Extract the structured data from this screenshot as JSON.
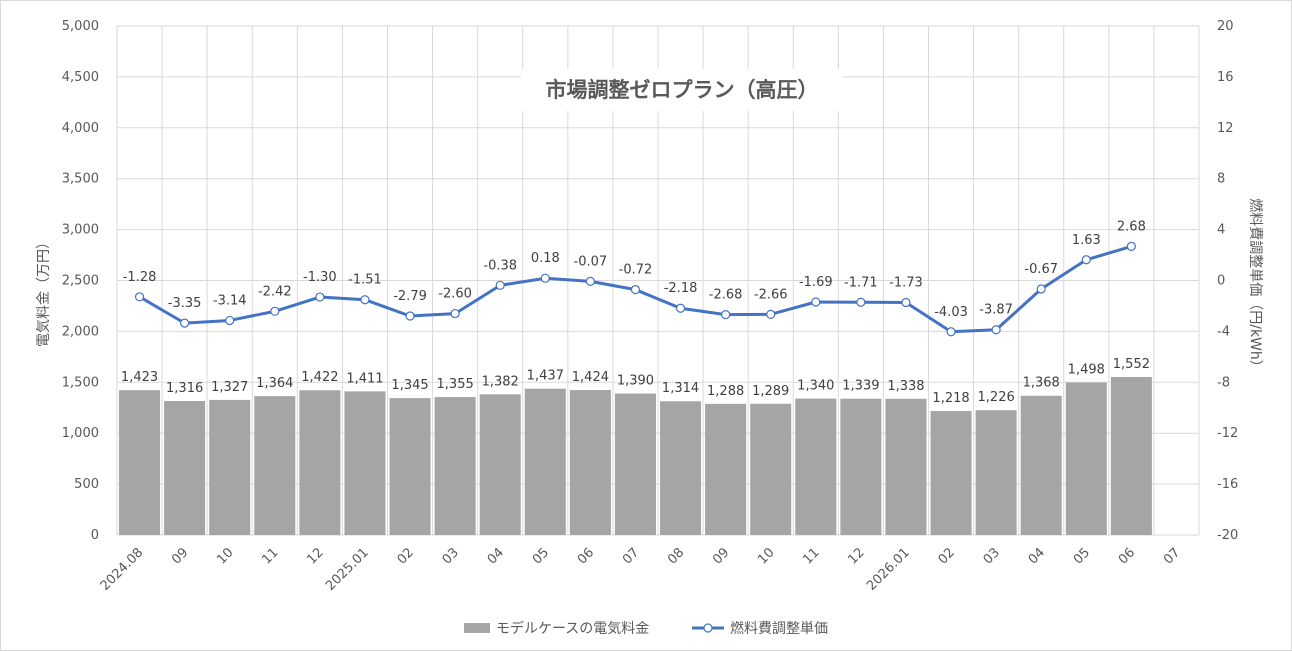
{
  "chart_data": {
    "type": "bar+line",
    "title": "市場調整ゼロプラン（高圧）",
    "categories": [
      "2024.08",
      "09",
      "10",
      "11",
      "12",
      "2025.01",
      "02",
      "03",
      "04",
      "05",
      "06",
      "07",
      "08",
      "09",
      "10",
      "11",
      "12",
      "2026.01",
      "02",
      "03",
      "04",
      "05",
      "06",
      "07"
    ],
    "series": [
      {
        "name": "モデルケースの電気料金",
        "type": "bar",
        "axis": "left",
        "color": "#a5a5a5",
        "values": [
          1423,
          1316,
          1327,
          1364,
          1422,
          1411,
          1345,
          1355,
          1382,
          1437,
          1424,
          1390,
          1314,
          1288,
          1289,
          1340,
          1339,
          1338,
          1218,
          1226,
          1368,
          1498,
          1552,
          null
        ],
        "labels": [
          "1,423",
          "1,316",
          "1,327",
          "1,364",
          "1,422",
          "1,411",
          "1,345",
          "1,355",
          "1,382",
          "1,437",
          "1,424",
          "1,390",
          "1,314",
          "1,288",
          "1,289",
          "1,340",
          "1,339",
          "1,338",
          "1,218",
          "1,226",
          "1,368",
          "1,498",
          "1,552",
          ""
        ]
      },
      {
        "name": "燃料費調整単価",
        "type": "line",
        "axis": "right",
        "color": "#4472c4",
        "values": [
          -1.28,
          -3.35,
          -3.14,
          -2.42,
          -1.3,
          -1.51,
          -2.79,
          -2.6,
          -0.38,
          0.18,
          -0.07,
          -0.72,
          -2.18,
          -2.68,
          -2.66,
          -1.69,
          -1.71,
          -1.73,
          -4.03,
          -3.87,
          -0.67,
          1.63,
          2.68,
          null
        ],
        "labels": [
          "-1.28",
          "-3.35",
          "-3.14",
          "-2.42",
          "-1.30",
          "-1.51",
          "-2.79",
          "-2.60",
          "-0.38",
          "0.18",
          "-0.07",
          "-0.72",
          "-2.18",
          "-2.68",
          "-2.66",
          "-1.69",
          "-1.71",
          "-1.73",
          "-4.03",
          "-3.87",
          "-0.67",
          "1.63",
          "2.68",
          ""
        ]
      }
    ],
    "y_left": {
      "label": "電気料金（万円）",
      "min": 0,
      "max": 5000,
      "ticks": [
        "0",
        "500",
        "1,000",
        "1,500",
        "2,000",
        "2,500",
        "3,000",
        "3,500",
        "4,000",
        "4,500",
        "5,000"
      ]
    },
    "y_right": {
      "label": "燃料費調整単価（円/kWh）",
      "min": -20,
      "max": 20,
      "ticks": [
        "-20",
        "-16",
        "-12",
        "-8",
        "-4",
        "0",
        "4",
        "8",
        "12",
        "16",
        "20"
      ]
    },
    "grid": true,
    "legend_position": "bottom"
  }
}
